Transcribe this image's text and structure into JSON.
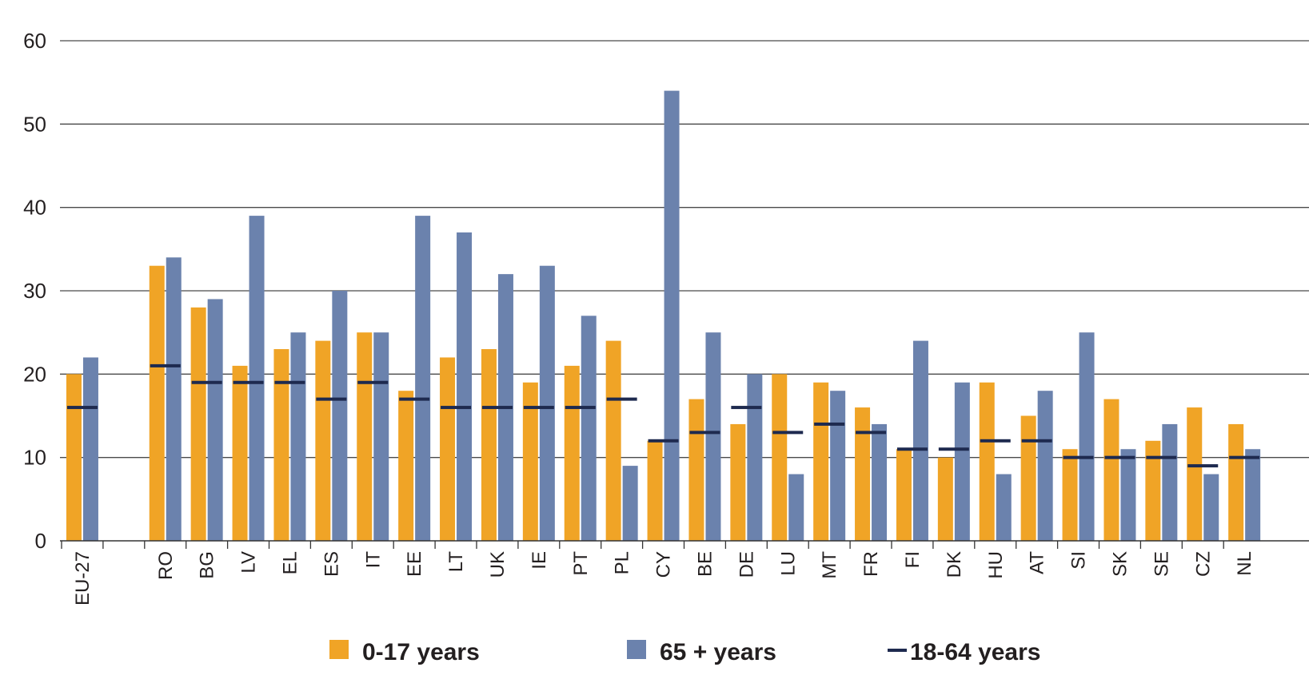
{
  "chart_data": {
    "type": "bar",
    "title": "",
    "xlabel": "",
    "ylabel": "",
    "ylim": [
      0,
      60
    ],
    "yticks": [
      0,
      10,
      20,
      30,
      40,
      50,
      60
    ],
    "grid": true,
    "legend_position": "bottom",
    "categories": [
      "EU-27",
      "",
      "RO",
      "BG",
      "LV",
      "EL",
      "ES",
      "IT",
      "EE",
      "LT",
      "UK",
      "IE",
      "PT",
      "PL",
      "CY",
      "BE",
      "DE",
      "LU",
      "MT",
      "FR",
      "FI",
      "DK",
      "HU",
      "AT",
      "SI",
      "SK",
      "SE",
      "CZ",
      "NL"
    ],
    "series": [
      {
        "name": "0-17 years",
        "kind": "bar",
        "color": "#f0a426",
        "values": [
          20,
          null,
          33,
          28,
          21,
          23,
          24,
          25,
          18,
          22,
          23,
          19,
          21,
          24,
          12,
          17,
          14,
          20,
          19,
          16,
          11,
          10,
          19,
          15,
          11,
          17,
          12,
          16,
          14
        ]
      },
      {
        "name": "65 + years",
        "kind": "bar",
        "color": "#6b82ad",
        "values": [
          22,
          null,
          34,
          29,
          39,
          25,
          30,
          25,
          39,
          37,
          32,
          33,
          27,
          9,
          54,
          25,
          20,
          8,
          18,
          14,
          24,
          19,
          8,
          18,
          25,
          11,
          14,
          8,
          11
        ]
      },
      {
        "name": "18-64 years",
        "kind": "marker",
        "color": "#1e2a4f",
        "values": [
          16,
          null,
          21,
          19,
          19,
          19,
          17,
          19,
          17,
          16,
          16,
          16,
          16,
          17,
          12,
          13,
          16,
          13,
          14,
          13,
          11,
          11,
          12,
          12,
          10,
          10,
          10,
          9,
          10
        ]
      }
    ]
  }
}
